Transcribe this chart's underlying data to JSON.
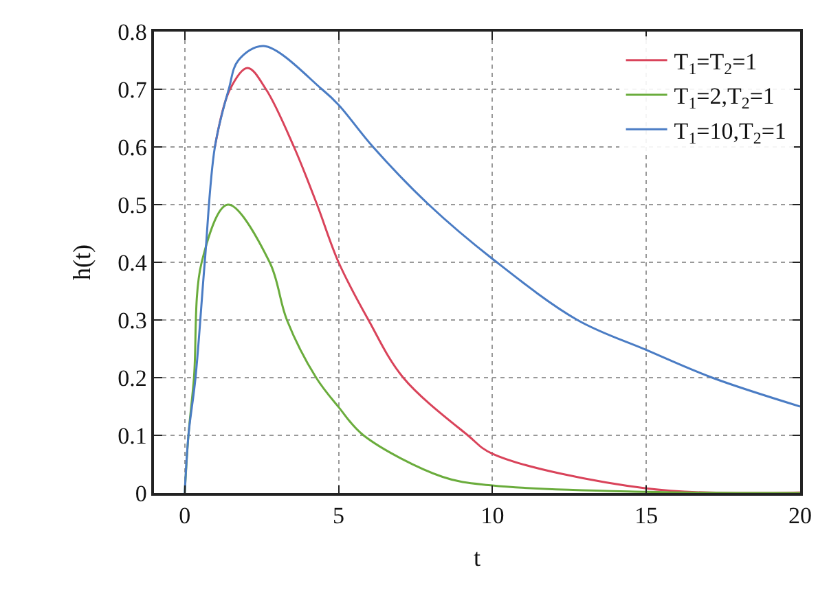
{
  "chart_data": {
    "type": "line",
    "xlabel": "t",
    "ylabel": "h(t)",
    "xlim": [
      -1,
      20
    ],
    "xticks": [
      0,
      5,
      10,
      15,
      20
    ],
    "ylim": [
      0,
      0.8
    ],
    "yticks": [
      0,
      0.1,
      0.2,
      0.3,
      0.4,
      0.5,
      0.6,
      0.7,
      0.8
    ],
    "grid": true,
    "legend": "top right",
    "marker": "none",
    "line_style": "solid",
    "series": [
      {
        "name": "T$_{1}$=T$_{2}$=1",
        "color": "#d9435a",
        "x": [
          0.98,
          1.47,
          2.04,
          2.64,
          3.55,
          4.3,
          5.0,
          5.97,
          7.1,
          9.2,
          10,
          15,
          20
        ],
        "values": [
          0.6,
          0.7,
          0.737,
          0.7,
          0.6,
          0.5,
          0.4,
          0.3,
          0.2,
          0.1,
          0.068,
          0.008,
          0.001
        ]
      },
      {
        "name": "T$_{1}$=2,T$_{2}$=1",
        "color": "#6aac3c",
        "x": [
          0,
          0.12,
          0.3,
          0.55,
          1.4,
          2.76,
          3.32,
          4.27,
          5.0,
          5.81,
          8.38,
          10,
          15,
          20
        ],
        "values": [
          0,
          0.1,
          0.2,
          0.4,
          0.5,
          0.4,
          0.3,
          0.2,
          0.149,
          0.1,
          0.028,
          0.013,
          0.002,
          0
        ]
      },
      {
        "name": "T$_{1}$=10,T$_{2}$=1",
        "color": "#4a7cc4",
        "x": [
          0,
          0.12,
          0.35,
          0.65,
          0.98,
          1.43,
          1.74,
          2.57,
          4.46,
          5.0,
          6.12,
          7.93,
          10,
          12.76,
          15,
          17.14,
          20
        ],
        "values": [
          0,
          0.1,
          0.2,
          0.4,
          0.6,
          0.7,
          0.75,
          0.775,
          0.7,
          0.673,
          0.6,
          0.5,
          0.406,
          0.3,
          0.248,
          0.2,
          0.15
        ]
      }
    ]
  }
}
